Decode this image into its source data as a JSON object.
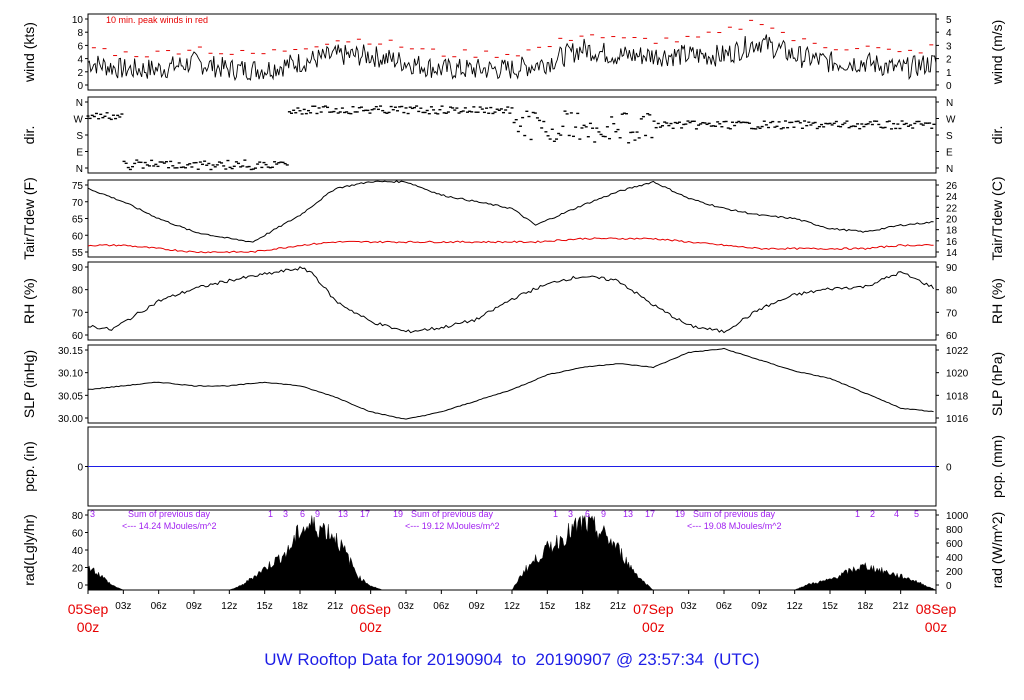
{
  "title": "UW Rooftop Data for 20190904  to  20190907 @ 23:57:34  (UTC)",
  "colors": {
    "main_line": "#000000",
    "dewpoint": "#e60000",
    "peak_wind": "#e60000",
    "precip": "#1e1ee6",
    "solar_label": "#a020f0",
    "date_label": "#e60000",
    "title": "#1e1ee6"
  },
  "x_axis": {
    "hour_ticks": [
      "03z",
      "06z",
      "09z",
      "12z",
      "15z",
      "18z",
      "21z",
      "03z",
      "06z",
      "09z",
      "12z",
      "15z",
      "18z",
      "21z",
      "03z",
      "06z",
      "09z",
      "12z",
      "15z",
      "18z",
      "21z"
    ],
    "date_labels": [
      {
        "date": "05Sep",
        "hour": "00z"
      },
      {
        "date": "06Sep",
        "hour": "00z"
      },
      {
        "date": "07Sep",
        "hour": "00z"
      },
      {
        "date": "08Sep",
        "hour": "00z"
      }
    ]
  },
  "chart_data": [
    {
      "type": "line",
      "panel": "wind",
      "left_label": "wind (kts)",
      "right_label": "wind (m/s)",
      "left_ticks": [
        "0",
        "2",
        "4",
        "6",
        "8",
        "10"
      ],
      "right_ticks": [
        "0",
        "1",
        "2",
        "3",
        "4",
        "5"
      ],
      "ylim": [
        0,
        11
      ],
      "annotation": "10 min. peak winds in red",
      "x_hours": [
        0,
        3,
        6,
        9,
        12,
        15,
        18,
        21,
        24,
        27,
        30,
        33,
        36,
        39,
        42,
        45,
        48,
        51,
        54,
        57,
        60,
        63,
        66,
        69,
        72
      ],
      "series": [
        {
          "values": [
            4,
            3,
            3,
            4,
            3,
            3,
            4,
            5,
            5,
            4,
            3,
            3,
            3,
            4,
            6,
            5,
            5,
            5,
            5,
            7,
            5,
            4,
            4,
            3,
            4
          ]
        },
        {
          "values": [
            6,
            5,
            5,
            6,
            5,
            5,
            6,
            7,
            7,
            6,
            5,
            5,
            5,
            6,
            8,
            7,
            7,
            7,
            8,
            10,
            7,
            6,
            6,
            5,
            6
          ]
        }
      ]
    },
    {
      "type": "scatter",
      "panel": "direction",
      "left_label": "dir.",
      "right_label": "dir.",
      "left_ticks": [
        "N",
        "E",
        "S",
        "W",
        "N"
      ],
      "right_ticks": [
        "N",
        "E",
        "S",
        "W",
        "N"
      ]
    },
    {
      "type": "line",
      "panel": "temperature",
      "left_label": "Tair/Tdew (F)",
      "right_label": "Tair/Tdew (C)",
      "left_ticks": [
        "55",
        "60",
        "65",
        "70",
        "75"
      ],
      "right_ticks": [
        "14",
        "16",
        "18",
        "20",
        "22",
        "24",
        "26"
      ],
      "ylim": [
        54.5,
        77.5
      ],
      "x_hours": [
        0,
        3,
        6,
        9,
        12,
        14,
        18,
        21,
        24,
        27,
        30,
        33,
        36,
        38,
        42,
        45,
        48,
        51,
        54,
        57,
        60,
        63,
        66,
        69,
        72
      ],
      "series": [
        {
          "values": [
            75,
            71,
            66,
            62,
            60,
            59,
            67,
            75,
            77,
            77,
            73,
            71,
            69,
            64,
            70,
            74,
            77,
            72,
            69,
            67,
            66,
            63,
            62,
            64,
            65
          ]
        },
        {
          "values": [
            58,
            58,
            57,
            56,
            56,
            56,
            58,
            59,
            59,
            59,
            59,
            59,
            59,
            59,
            60,
            60,
            60,
            59,
            58,
            57,
            57,
            57,
            57,
            58,
            58
          ]
        }
      ]
    },
    {
      "type": "line",
      "panel": "humidity",
      "left_label": "RH (%)",
      "right_label": "RH (%)",
      "left_ticks": [
        "60",
        "70",
        "80",
        "90"
      ],
      "right_ticks": [
        "60",
        "70",
        "80",
        "90"
      ],
      "ylim": [
        53,
        91
      ],
      "x_hours": [
        0,
        2,
        4,
        6,
        9,
        12,
        15,
        18,
        19,
        21,
        24,
        27,
        30,
        33,
        36,
        38,
        40,
        42,
        45,
        48,
        51,
        54,
        57,
        60,
        63,
        66,
        69,
        72
      ],
      "series": [
        {
          "values": [
            60,
            58,
            65,
            72,
            78,
            82,
            85,
            88,
            86,
            72,
            62,
            57,
            59,
            63,
            73,
            78,
            82,
            84,
            82,
            70,
            60,
            57,
            68,
            75,
            78,
            79,
            86,
            78
          ]
        }
      ]
    },
    {
      "type": "line",
      "panel": "pressure",
      "left_label": "SLP (inHg)",
      "right_label": "SLP (hPa)",
      "left_ticks": [
        "30.00",
        "30.05",
        "30.10",
        "30.15"
      ],
      "right_ticks": [
        "1016",
        "1018",
        "1020",
        "1022"
      ],
      "ylim": [
        29.98,
        30.19
      ],
      "x_hours": [
        0,
        3,
        6,
        9,
        12,
        15,
        18,
        21,
        24,
        27,
        30,
        33,
        36,
        39,
        42,
        45,
        48,
        51,
        54,
        57,
        60,
        63,
        66,
        69,
        72
      ],
      "series": [
        {
          "values": [
            30.07,
            30.08,
            30.09,
            30.08,
            30.08,
            30.09,
            30.08,
            30.05,
            30.01,
            29.99,
            30.01,
            30.04,
            30.07,
            30.11,
            30.13,
            30.14,
            30.13,
            30.17,
            30.18,
            30.15,
            30.12,
            30.1,
            30.06,
            30.02,
            30.01
          ]
        }
      ]
    },
    {
      "type": "line",
      "panel": "precip",
      "left_label": "pcp. (in)",
      "right_label": "pcp. (mm)",
      "left_ticks": [
        "0"
      ],
      "right_ticks": [
        "0"
      ],
      "series": [
        {
          "values": [
            0,
            0
          ]
        }
      ]
    },
    {
      "type": "area",
      "panel": "radiation",
      "left_label": "rad(Lgly/hr)",
      "right_label": "rad (W/m^2)",
      "left_ticks": [
        "0",
        "20",
        "40",
        "60",
        "80"
      ],
      "right_ticks": [
        "0",
        "200",
        "400",
        "600",
        "800",
        "1000"
      ],
      "ylim": [
        0,
        86
      ],
      "x_hours": [
        0,
        1,
        2,
        3,
        12,
        13,
        15,
        17,
        18,
        19,
        20,
        21,
        22,
        23,
        24,
        25,
        36,
        37,
        39,
        41,
        42,
        43,
        44,
        45,
        46,
        47,
        48,
        60,
        61,
        63,
        65,
        66,
        67,
        68,
        69,
        70,
        71,
        72
      ],
      "series": [
        {
          "values": [
            28,
            18,
            6,
            0,
            0,
            5,
            25,
            45,
            70,
            75,
            72,
            62,
            40,
            15,
            5,
            0,
            0,
            22,
            48,
            68,
            78,
            72,
            62,
            48,
            28,
            12,
            0,
            0,
            6,
            12,
            24,
            28,
            24,
            20,
            16,
            12,
            6,
            0
          ]
        }
      ],
      "daily_sums": [
        {
          "heading": "Sum of previous day",
          "value": "<--- 14.24 MJoules/m^2"
        },
        {
          "heading": "Sum of previous day",
          "value": "<--- 19.12 MJoules/m^2"
        },
        {
          "heading": "Sum of previous day",
          "value": "<--- 19.08 MJoules/m^2"
        }
      ],
      "hour_markers": [
        "3",
        "1",
        "3",
        "6",
        "9",
        "13",
        "17",
        "19",
        "1",
        "3",
        "6",
        "9",
        "13",
        "17",
        "19",
        "1",
        "2",
        "4",
        "5"
      ]
    }
  ]
}
